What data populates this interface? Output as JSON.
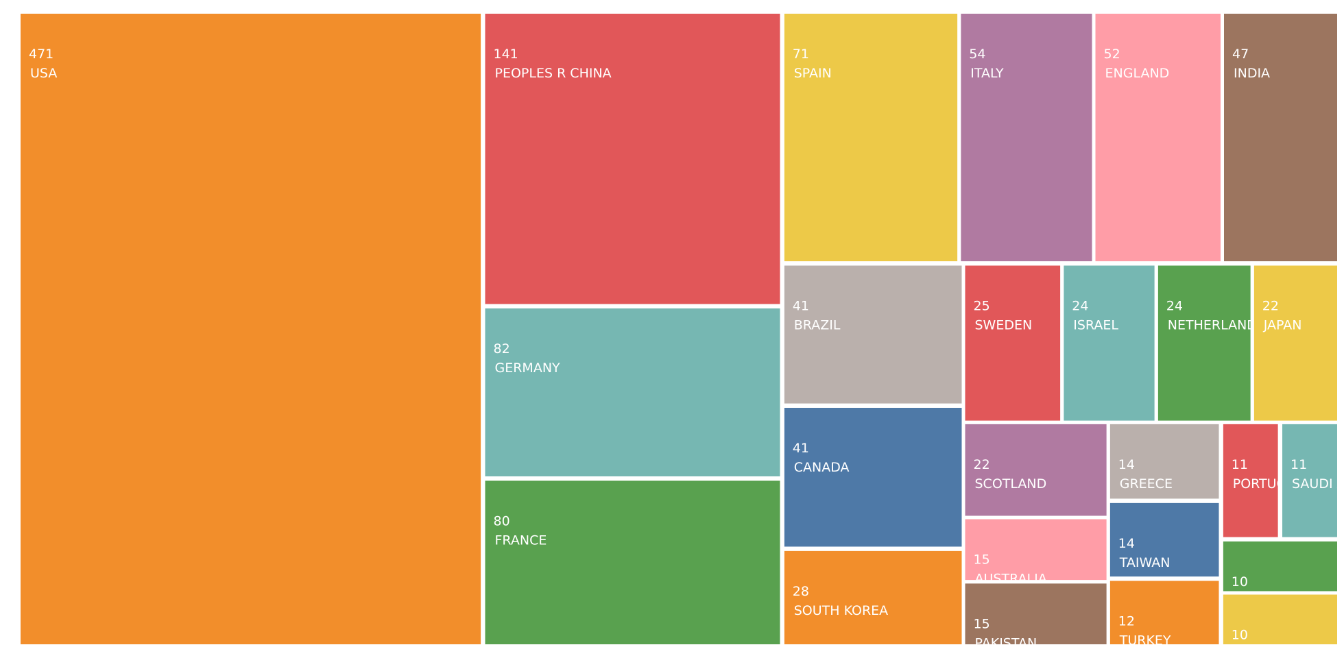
{
  "chart_data": {
    "type": "treemap",
    "categories": [
      "USA",
      "PEOPLES R CHINA",
      "GERMANY",
      "FRANCE",
      "SPAIN",
      "ITALY",
      "ENGLAND",
      "INDIA",
      "BRAZIL",
      "CANADA",
      "SOUTH KOREA",
      "SWEDEN",
      "ISRAEL",
      "NETHERLANDS",
      "JAPAN",
      "SCOTLAND",
      "AUSTRALIA",
      "PAKISTAN",
      "GREECE",
      "TAIWAN",
      "TURKEY",
      "PORTUGAL",
      "SAUDI ARABIA",
      null,
      null
    ],
    "values": [
      471,
      141,
      82,
      80,
      71,
      54,
      52,
      47,
      41,
      41,
      28,
      25,
      24,
      24,
      22,
      22,
      15,
      15,
      14,
      14,
      12,
      11,
      11,
      10,
      10
    ],
    "colors": [
      "#f28e2b",
      "#e15759",
      "#76b7b2",
      "#59a14f",
      "#edc948",
      "#b07aa1",
      "#ff9da7",
      "#9c755f",
      "#bab0ac",
      "#4e79a7",
      "#f28e2b",
      "#e15759",
      "#76b7b2",
      "#59a14f",
      "#edc948",
      "#b07aa1",
      "#ff9da7",
      "#9c755f",
      "#bab0ac",
      "#4e79a7",
      "#f28e2b",
      "#e15759",
      "#76b7b2",
      "#59a14f",
      "#edc948"
    ]
  }
}
